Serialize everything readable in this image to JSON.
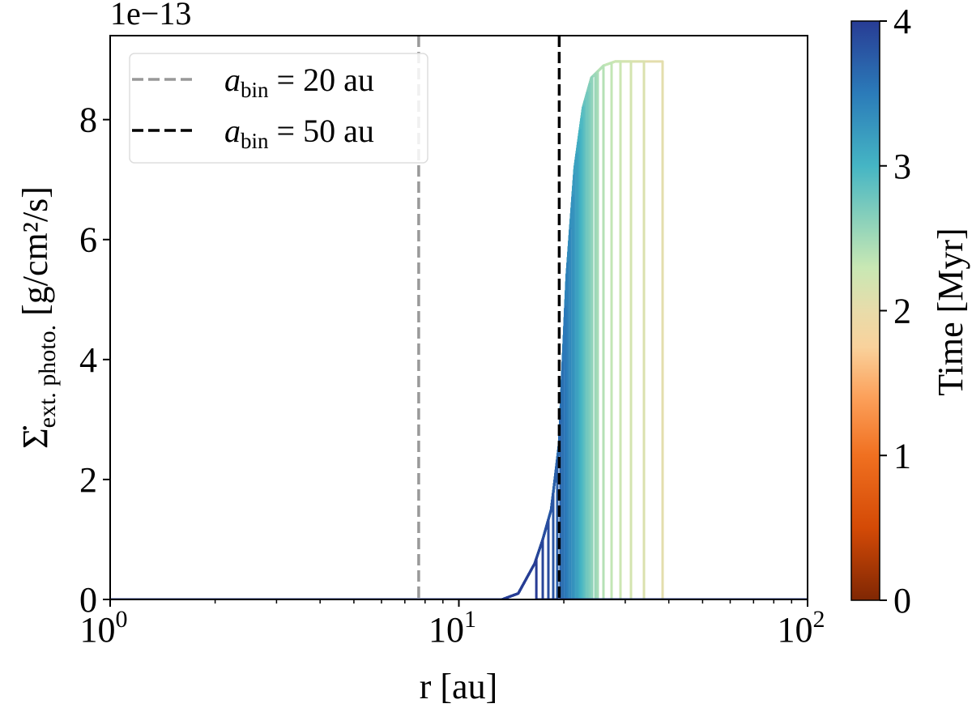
{
  "chart_data": {
    "type": "line",
    "xlabel": "r [au]",
    "ylabel_main": "Σ̇",
    "ylabel_sub": "ext. photo.",
    "ylabel_unit": "[g/cm²/s]",
    "y_offset_label": "1e−13",
    "x_scale": "log",
    "xlim": [
      1,
      100
    ],
    "ylim": [
      0,
      9.4
    ],
    "y_units_multiplier": 1e-13,
    "x_ticks": [
      {
        "value": 1,
        "base": "10",
        "exp": "0"
      },
      {
        "value": 10,
        "base": "10",
        "exp": "1"
      },
      {
        "value": 100,
        "base": "10",
        "exp": "2"
      }
    ],
    "y_ticks": [
      {
        "value": 0,
        "label": "0"
      },
      {
        "value": 2,
        "label": "2"
      },
      {
        "value": 4,
        "label": "4"
      },
      {
        "value": 6,
        "label": "6"
      },
      {
        "value": 8,
        "label": "8"
      }
    ],
    "grid": false,
    "profile": {
      "r": [
        1,
        13.3,
        14.8,
        16.5,
        17.4,
        18.4,
        19.4,
        20.4,
        21.5,
        22.7,
        24.0,
        26.0,
        28.1,
        100
      ],
      "value": [
        0,
        0,
        0.1,
        0.6,
        1.0,
        1.5,
        2.6,
        5.4,
        7.2,
        8.2,
        8.7,
        8.9,
        8.97,
        8.97
      ]
    },
    "curves": [
      {
        "time": 2.05,
        "r_cut": 38.39
      },
      {
        "time": 2.12,
        "r_cut": 33.95
      },
      {
        "time": 2.19,
        "r_cut": 31.16
      },
      {
        "time": 2.26,
        "r_cut": 29.07
      },
      {
        "time": 2.33,
        "r_cut": 27.41
      },
      {
        "time": 2.4,
        "r_cut": 25.98
      },
      {
        "time": 2.47,
        "r_cut": 25.02
      },
      {
        "time": 2.54,
        "r_cut": 24.63
      },
      {
        "time": 2.61,
        "r_cut": 24.11
      },
      {
        "time": 2.68,
        "r_cut": 23.72
      },
      {
        "time": 2.75,
        "r_cut": 23.35
      },
      {
        "time": 2.82,
        "r_cut": 22.98
      },
      {
        "time": 2.89,
        "r_cut": 22.73
      },
      {
        "time": 2.96,
        "r_cut": 22.49
      },
      {
        "time": 3.03,
        "r_cut": 22.25
      },
      {
        "time": 3.1,
        "r_cut": 22.01
      },
      {
        "time": 3.17,
        "r_cut": 21.78
      },
      {
        "time": 3.24,
        "r_cut": 21.43
      },
      {
        "time": 3.31,
        "r_cut": 21.21
      },
      {
        "time": 3.38,
        "r_cut": 20.87
      },
      {
        "time": 3.45,
        "r_cut": 20.53
      },
      {
        "time": 3.52,
        "r_cut": 20.21
      },
      {
        "time": 3.59,
        "r_cut": 19.88
      },
      {
        "time": 3.66,
        "r_cut": 19.56
      },
      {
        "time": 3.73,
        "r_cut": 19.15
      },
      {
        "time": 3.8,
        "r_cut": 18.65
      },
      {
        "time": 3.87,
        "r_cut": 18.06
      },
      {
        "time": 3.93,
        "r_cut": 17.4
      },
      {
        "time": 4.0,
        "r_cut": 16.68
      }
    ],
    "vlines": [
      {
        "r": 7.67,
        "color": "#999999",
        "label_sym": "a",
        "label_sub": "bin",
        "label_rest": " = 20 au"
      },
      {
        "r": 19.4,
        "color": "#000000",
        "label_sym": "a",
        "label_sub": "bin",
        "label_rest": " = 50 au"
      }
    ],
    "legend_position": "upper-left",
    "colorbar": {
      "label": "Time [Myr]",
      "range": [
        0,
        4
      ],
      "ticks": [
        "0",
        "1",
        "2",
        "3",
        "4"
      ],
      "stops": [
        {
          "v": 0,
          "color": "#7f2704"
        },
        {
          "v": 0.5,
          "color": "#d44a06"
        },
        {
          "v": 1.0,
          "color": "#f07020"
        },
        {
          "v": 1.4,
          "color": "#fca05a"
        },
        {
          "v": 1.75,
          "color": "#f9d29c"
        },
        {
          "v": 2.0,
          "color": "#e8dcaa"
        },
        {
          "v": 2.3,
          "color": "#c8e8b4"
        },
        {
          "v": 2.65,
          "color": "#86cfbb"
        },
        {
          "v": 3.0,
          "color": "#45b5c4"
        },
        {
          "v": 3.5,
          "color": "#2b7bb9"
        },
        {
          "v": 4.0,
          "color": "#283c94"
        }
      ]
    }
  }
}
